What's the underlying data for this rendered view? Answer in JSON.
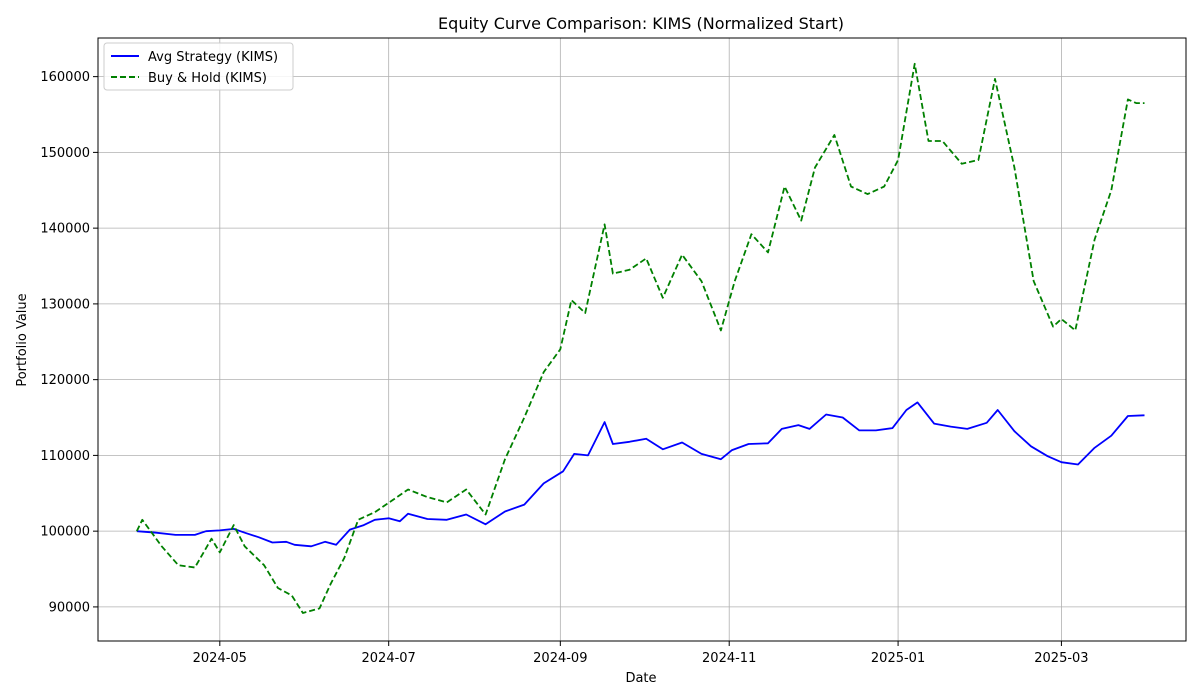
{
  "chart_data": {
    "type": "line",
    "title": "Equity Curve Comparison: KIMS (Normalized Start)",
    "xlabel": "Date",
    "ylabel": "Portfolio Value",
    "x_tick_labels": [
      {
        "label": "2024-05",
        "date": "2024-05-01"
      },
      {
        "label": "2024-07",
        "date": "2024-07-01"
      },
      {
        "label": "2024-09",
        "date": "2024-09-01"
      },
      {
        "label": "2024-11",
        "date": "2024-11-01"
      },
      {
        "label": "2025-01",
        "date": "2025-01-01"
      },
      {
        "label": "2025-03",
        "date": "2025-03-01"
      }
    ],
    "y_ticks": [
      90000,
      100000,
      110000,
      120000,
      130000,
      140000,
      150000,
      160000
    ],
    "y_tick_labels": [
      "90000",
      "100000",
      "110000",
      "120000",
      "130000",
      "140000",
      "150000",
      "160000"
    ],
    "xlim": [
      "2024-03-18",
      "2025-04-15"
    ],
    "ylim": [
      85500,
      165100
    ],
    "grid": true,
    "legend_position": "upper-left",
    "series": [
      {
        "name": "Avg Strategy (KIMS)",
        "color": "#0000ff",
        "style": "solid",
        "points": [
          [
            "2024-04-01",
            100000
          ],
          [
            "2024-04-08",
            99800
          ],
          [
            "2024-04-15",
            99500
          ],
          [
            "2024-04-22",
            99500
          ],
          [
            "2024-04-26",
            100000
          ],
          [
            "2024-05-01",
            100100
          ],
          [
            "2024-05-06",
            100300
          ],
          [
            "2024-05-10",
            99800
          ],
          [
            "2024-05-15",
            99200
          ],
          [
            "2024-05-20",
            98500
          ],
          [
            "2024-05-25",
            98600
          ],
          [
            "2024-05-28",
            98200
          ],
          [
            "2024-06-03",
            98000
          ],
          [
            "2024-06-08",
            98600
          ],
          [
            "2024-06-12",
            98200
          ],
          [
            "2024-06-17",
            100200
          ],
          [
            "2024-06-22",
            100800
          ],
          [
            "2024-06-26",
            101500
          ],
          [
            "2024-07-01",
            101700
          ],
          [
            "2024-07-05",
            101300
          ],
          [
            "2024-07-08",
            102300
          ],
          [
            "2024-07-15",
            101600
          ],
          [
            "2024-07-22",
            101500
          ],
          [
            "2024-07-29",
            102200
          ],
          [
            "2024-08-05",
            100900
          ],
          [
            "2024-08-12",
            102600
          ],
          [
            "2024-08-19",
            103500
          ],
          [
            "2024-08-26",
            106300
          ],
          [
            "2024-09-02",
            107900
          ],
          [
            "2024-09-06",
            110200
          ],
          [
            "2024-09-11",
            110000
          ],
          [
            "2024-09-17",
            114400
          ],
          [
            "2024-09-20",
            111500
          ],
          [
            "2024-09-26",
            111800
          ],
          [
            "2024-10-02",
            112200
          ],
          [
            "2024-10-08",
            110800
          ],
          [
            "2024-10-15",
            111700
          ],
          [
            "2024-10-22",
            110200
          ],
          [
            "2024-10-29",
            109500
          ],
          [
            "2024-11-02",
            110700
          ],
          [
            "2024-11-08",
            111500
          ],
          [
            "2024-11-15",
            111600
          ],
          [
            "2024-11-20",
            113500
          ],
          [
            "2024-11-26",
            114000
          ],
          [
            "2024-11-30",
            113500
          ],
          [
            "2024-12-06",
            115400
          ],
          [
            "2024-12-12",
            115000
          ],
          [
            "2024-12-18",
            113300
          ],
          [
            "2024-12-24",
            113300
          ],
          [
            "2024-12-30",
            113600
          ],
          [
            "2025-01-04",
            116000
          ],
          [
            "2025-01-08",
            117000
          ],
          [
            "2025-01-14",
            114200
          ],
          [
            "2025-01-20",
            113800
          ],
          [
            "2025-01-26",
            113500
          ],
          [
            "2025-02-02",
            114300
          ],
          [
            "2025-02-06",
            116000
          ],
          [
            "2025-02-12",
            113200
          ],
          [
            "2025-02-18",
            111200
          ],
          [
            "2025-02-24",
            109900
          ],
          [
            "2025-03-01",
            109100
          ],
          [
            "2025-03-07",
            108800
          ],
          [
            "2025-03-13",
            111000
          ],
          [
            "2025-03-19",
            112600
          ],
          [
            "2025-03-25",
            115200
          ],
          [
            "2025-03-31",
            115300
          ]
        ]
      },
      {
        "name": "Buy & Hold (KIMS)",
        "color": "#008000",
        "style": "dashed",
        "points": [
          [
            "2024-04-01",
            100000
          ],
          [
            "2024-04-03",
            101500
          ],
          [
            "2024-04-10",
            98000
          ],
          [
            "2024-04-16",
            95500
          ],
          [
            "2024-04-22",
            95200
          ],
          [
            "2024-04-28",
            99000
          ],
          [
            "2024-05-01",
            97200
          ],
          [
            "2024-05-06",
            100800
          ],
          [
            "2024-05-10",
            98000
          ],
          [
            "2024-05-17",
            95500
          ],
          [
            "2024-05-22",
            92500
          ],
          [
            "2024-05-27",
            91500
          ],
          [
            "2024-05-31",
            89200
          ],
          [
            "2024-06-06",
            89800
          ],
          [
            "2024-06-10",
            93000
          ],
          [
            "2024-06-15",
            96500
          ],
          [
            "2024-06-20",
            101500
          ],
          [
            "2024-06-26",
            102500
          ],
          [
            "2024-07-02",
            104000
          ],
          [
            "2024-07-08",
            105500
          ],
          [
            "2024-07-15",
            104500
          ],
          [
            "2024-07-22",
            103800
          ],
          [
            "2024-07-29",
            105500
          ],
          [
            "2024-08-05",
            102200
          ],
          [
            "2024-08-12",
            109500
          ],
          [
            "2024-08-19",
            115000
          ],
          [
            "2024-08-26",
            121000
          ],
          [
            "2024-09-01",
            124000
          ],
          [
            "2024-09-05",
            130500
          ],
          [
            "2024-09-10",
            128800
          ],
          [
            "2024-09-17",
            140500
          ],
          [
            "2024-09-20",
            134000
          ],
          [
            "2024-09-26",
            134500
          ],
          [
            "2024-10-02",
            136000
          ],
          [
            "2024-10-08",
            130800
          ],
          [
            "2024-10-15",
            136500
          ],
          [
            "2024-10-22",
            133000
          ],
          [
            "2024-10-29",
            126500
          ],
          [
            "2024-11-03",
            133000
          ],
          [
            "2024-11-09",
            139200
          ],
          [
            "2024-11-15",
            136800
          ],
          [
            "2024-11-21",
            145500
          ],
          [
            "2024-11-27",
            141000
          ],
          [
            "2024-12-02",
            148000
          ],
          [
            "2024-12-09",
            152300
          ],
          [
            "2024-12-15",
            145500
          ],
          [
            "2024-12-21",
            144500
          ],
          [
            "2024-12-27",
            145500
          ],
          [
            "2025-01-01",
            149000
          ],
          [
            "2025-01-07",
            161700
          ],
          [
            "2025-01-12",
            151500
          ],
          [
            "2025-01-17",
            151500
          ],
          [
            "2025-01-24",
            148500
          ],
          [
            "2025-01-30",
            149000
          ],
          [
            "2025-02-05",
            159700
          ],
          [
            "2025-02-12",
            148000
          ],
          [
            "2025-02-19",
            133000
          ],
          [
            "2025-02-26",
            127000
          ],
          [
            "2025-03-01",
            128000
          ],
          [
            "2025-03-06",
            126500
          ],
          [
            "2025-03-13",
            138500
          ],
          [
            "2025-03-19",
            145000
          ],
          [
            "2025-03-25",
            157000
          ],
          [
            "2025-03-28",
            156500
          ],
          [
            "2025-03-31",
            156500
          ]
        ]
      }
    ]
  }
}
